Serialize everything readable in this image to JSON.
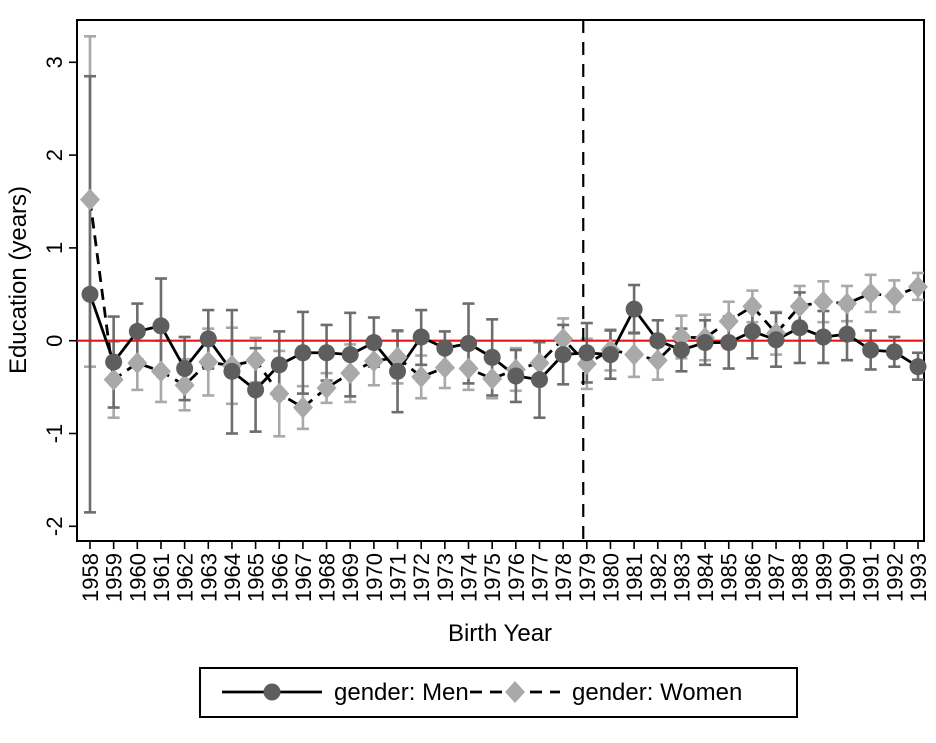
{
  "chart_data": {
    "type": "line",
    "title": "",
    "xlabel": "Birth Year",
    "ylabel": "Education (years)",
    "x_categories": [
      1958,
      1959,
      1960,
      1961,
      1962,
      1963,
      1964,
      1965,
      1966,
      1967,
      1968,
      1969,
      1970,
      1971,
      1972,
      1973,
      1974,
      1975,
      1976,
      1977,
      1978,
      1979,
      1980,
      1981,
      1982,
      1983,
      1984,
      1985,
      1986,
      1987,
      1988,
      1989,
      1990,
      1991,
      1992,
      1993
    ],
    "y_ticks": [
      3,
      2,
      1,
      0,
      -1,
      -2
    ],
    "ylim": [
      -2.16,
      3.46
    ],
    "grid": false,
    "legend_position": "bottom",
    "reference_lines": {
      "horizontal_y": 0,
      "horizontal_color": "#ee1111",
      "vertical_between_years": [
        1978,
        1979
      ],
      "vertical_year_position": 1978.85,
      "vertical_style": "dashed",
      "vertical_color": "#000000"
    },
    "series": [
      {
        "name": "gender: Men",
        "marker": "circle",
        "marker_color": "#5e5e5e",
        "line_style": "solid",
        "line_color": "#000000",
        "errorbar_color": "#6d6d6d",
        "values": [
          0.5,
          -0.23,
          0.1,
          0.16,
          -0.3,
          0.02,
          -0.33,
          -0.53,
          -0.26,
          -0.13,
          -0.13,
          -0.15,
          -0.02,
          -0.33,
          0.04,
          -0.08,
          -0.03,
          -0.18,
          -0.38,
          -0.42,
          -0.15,
          -0.13,
          -0.15,
          0.34,
          0.0,
          -0.1,
          -0.02,
          -0.02,
          0.1,
          0.01,
          0.14,
          0.04,
          0.07,
          -0.1,
          -0.12,
          -0.28
        ],
        "ci_low": [
          -1.85,
          -0.72,
          -0.2,
          -0.35,
          -0.64,
          -0.3,
          -1.0,
          -0.98,
          -0.62,
          -0.57,
          -0.43,
          -0.6,
          -0.28,
          -0.77,
          -0.26,
          -0.26,
          -0.46,
          -0.59,
          -0.66,
          -0.83,
          -0.47,
          -0.45,
          -0.41,
          0.08,
          -0.22,
          -0.33,
          -0.26,
          -0.3,
          -0.19,
          -0.28,
          -0.24,
          -0.24,
          -0.21,
          -0.31,
          -0.28,
          -0.42
        ],
        "ci_high": [
          2.85,
          0.26,
          0.4,
          0.67,
          0.04,
          0.33,
          0.33,
          -0.08,
          0.1,
          0.31,
          0.17,
          0.3,
          0.25,
          0.11,
          0.33,
          0.1,
          0.4,
          0.23,
          -0.1,
          -0.01,
          0.17,
          0.19,
          0.11,
          0.6,
          0.22,
          0.13,
          0.22,
          0.26,
          0.38,
          0.3,
          0.52,
          0.32,
          0.35,
          0.11,
          0.04,
          -0.13
        ]
      },
      {
        "name": "gender: Women",
        "marker": "diamond",
        "marker_color": "#a9a9a9",
        "line_style": "dashed",
        "line_color": "#000000",
        "errorbar_color": "#a9a9a9",
        "values": [
          1.52,
          -0.42,
          -0.24,
          -0.33,
          -0.48,
          -0.23,
          -0.27,
          -0.21,
          -0.57,
          -0.72,
          -0.51,
          -0.35,
          -0.22,
          -0.18,
          -0.39,
          -0.29,
          -0.3,
          -0.41,
          -0.31,
          -0.24,
          0.02,
          -0.25,
          -0.1,
          -0.15,
          -0.21,
          0.04,
          0.03,
          0.21,
          0.37,
          0.08,
          0.37,
          0.42,
          0.4,
          0.51,
          0.48,
          0.58
        ],
        "ci_low": [
          -0.28,
          -0.83,
          -0.53,
          -0.66,
          -0.75,
          -0.59,
          -0.68,
          -0.45,
          -1.03,
          -0.95,
          -0.67,
          -0.66,
          -0.48,
          -0.46,
          -0.62,
          -0.51,
          -0.53,
          -0.62,
          -0.54,
          -0.46,
          -0.2,
          -0.52,
          -0.32,
          -0.39,
          -0.42,
          -0.19,
          -0.21,
          0.0,
          0.2,
          -0.15,
          0.15,
          0.2,
          0.21,
          0.31,
          0.31,
          0.44
        ],
        "ci_high": [
          3.28,
          -0.01,
          0.05,
          0.0,
          -0.2,
          0.13,
          0.14,
          0.03,
          -0.11,
          -0.49,
          -0.35,
          -0.04,
          0.04,
          0.1,
          -0.16,
          -0.07,
          -0.07,
          -0.2,
          -0.08,
          -0.02,
          0.24,
          0.02,
          0.12,
          0.09,
          0.0,
          0.27,
          0.28,
          0.42,
          0.54,
          0.31,
          0.59,
          0.64,
          0.59,
          0.71,
          0.65,
          0.73
        ]
      }
    ]
  },
  "colors": {
    "background": "#ffffff",
    "frame": "#000000",
    "zero_line": "#ee1111",
    "men_marker": "#5e5e5e",
    "women_marker": "#a9a9a9"
  }
}
